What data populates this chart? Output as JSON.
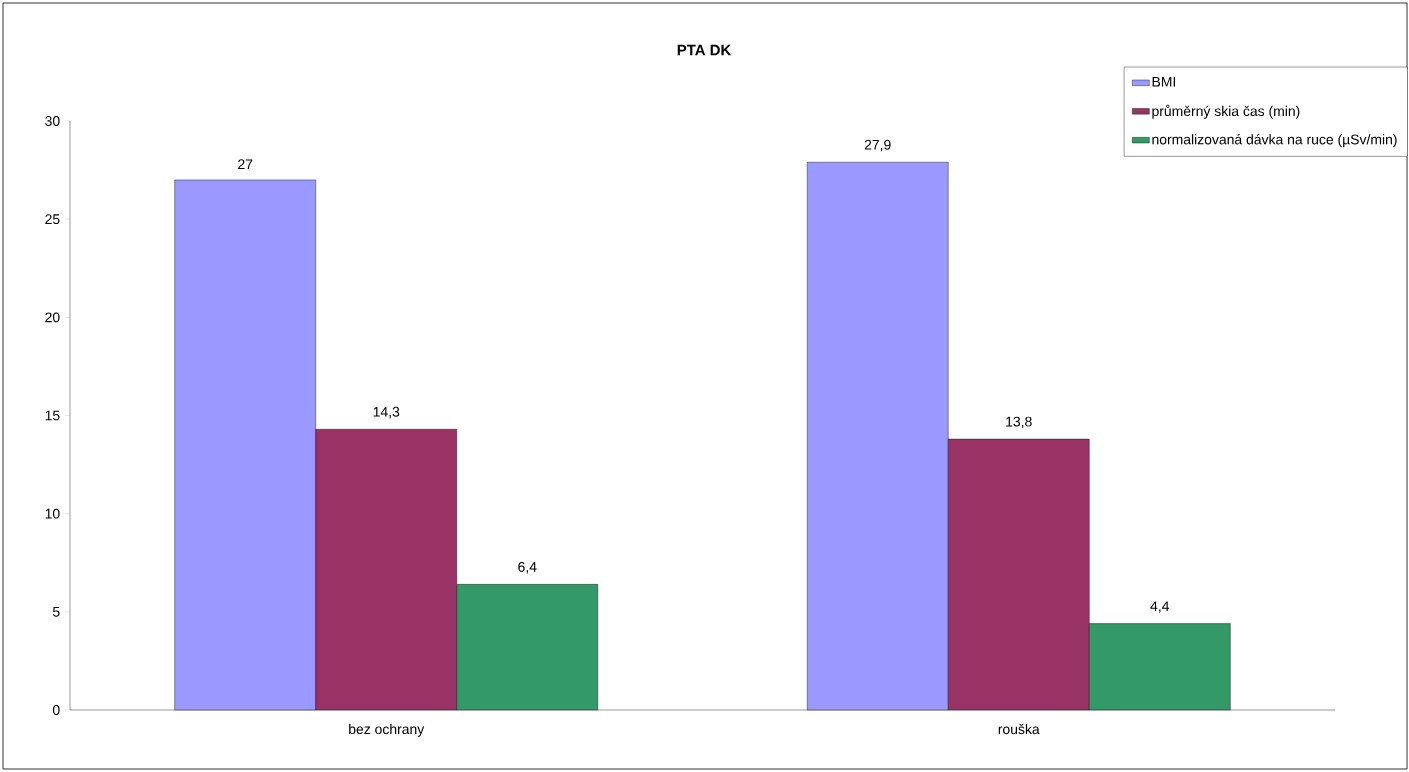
{
  "chart_data": {
    "type": "bar",
    "title": "PTA DK",
    "categories": [
      "bez ochrany",
      "rouška"
    ],
    "series": [
      {
        "name": "BMI",
        "color": "#9999ff",
        "values": [
          27,
          27.9
        ],
        "value_labels": [
          "27",
          "27,9"
        ]
      },
      {
        "name": "průměrný skia čas (min)",
        "color": "#993366",
        "values": [
          14.3,
          13.8
        ],
        "value_labels": [
          "14,3",
          "13,8"
        ]
      },
      {
        "name": "normalizovaná dávka na ruce (µSv/min)",
        "color": "#339966",
        "values": [
          6.4,
          4.4
        ],
        "value_labels": [
          "6,4",
          "4,4"
        ]
      }
    ],
    "ylim": [
      0,
      30
    ],
    "yticks": [
      0,
      5,
      10,
      15,
      20,
      25,
      30
    ],
    "legend": "top right",
    "grid": false
  }
}
